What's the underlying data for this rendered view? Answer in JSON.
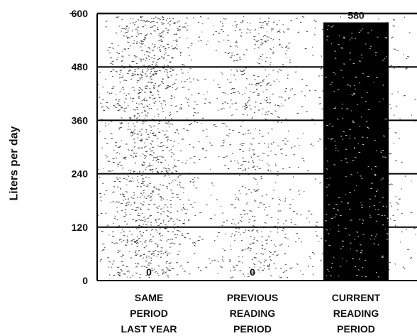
{
  "chart_data": {
    "type": "bar",
    "ylabel": "Liters per day",
    "xlabel": "",
    "title": "",
    "ylim": [
      0,
      600
    ],
    "yticks": [
      0,
      120,
      240,
      360,
      480,
      600
    ],
    "grid": true,
    "categories": [
      [
        "SAME",
        "PERIOD",
        "LAST YEAR"
      ],
      [
        "PREVIOUS",
        "READING",
        "PERIOD"
      ],
      [
        "CURRENT",
        "READING",
        "PERIOD"
      ]
    ],
    "values": [
      0,
      0,
      580
    ],
    "data_labels": [
      "0",
      "0",
      "580"
    ],
    "colors": {
      "bar": "#000000",
      "plot_background": "#ffffff",
      "gridline": "#000000",
      "speckle": "#333333"
    }
  }
}
